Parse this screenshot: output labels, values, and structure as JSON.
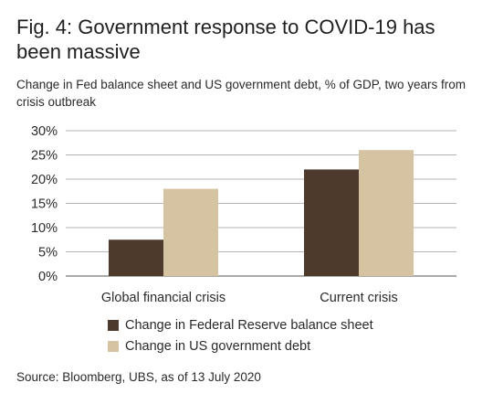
{
  "title": "Fig. 4: Government response to COVID-19 has been massive",
  "subtitle": "Change in Fed balance sheet and US government debt, % of GDP, two years from crisis outbreak",
  "source": "Source: Bloomberg, UBS, as of 13 July 2020",
  "colors": {
    "fed": "#4e3a2c",
    "debt": "#d6c3a1",
    "grid": "#9b9b9b",
    "axis": "#555555"
  },
  "chart_data": {
    "type": "bar",
    "categories": [
      "Global financial crisis",
      "Current crisis"
    ],
    "series": [
      {
        "name": "Change in Federal Reserve balance sheet",
        "values": [
          7.5,
          22
        ]
      },
      {
        "name": "Change in US government debt",
        "values": [
          18,
          26
        ]
      }
    ],
    "ylim": [
      0,
      30
    ],
    "yticks": [
      "0%",
      "5%",
      "10%",
      "15%",
      "20%",
      "25%",
      "30%"
    ],
    "grid": true,
    "legend_position": "bottom"
  }
}
